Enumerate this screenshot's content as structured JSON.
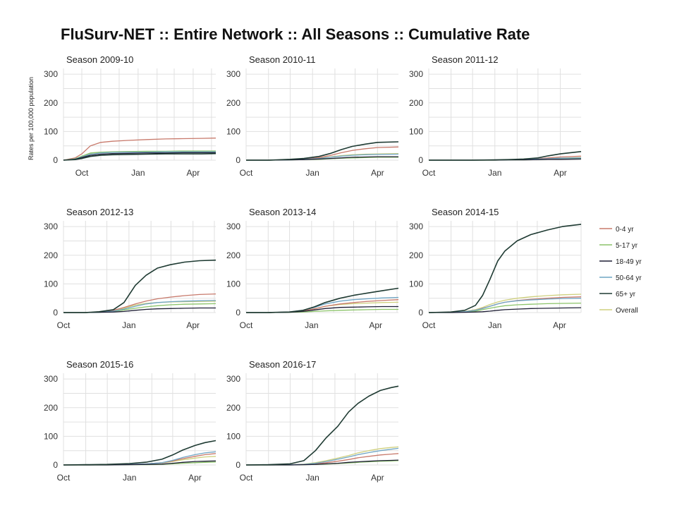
{
  "chart_data": {
    "type": "line",
    "title": "FluSurv-NET :: Entire Network :: All Seasons :: Cumulative Rate",
    "ylabel": "Rates per 100,000 population",
    "ylim": [
      0,
      320
    ],
    "yticks": [
      "0",
      "100",
      "200",
      "300"
    ],
    "grid": true,
    "legend_position": "right",
    "legend": [
      {
        "name": "0-4 yr",
        "color": "#c87a6c"
      },
      {
        "name": "5-17 yr",
        "color": "#8cc46a"
      },
      {
        "name": "18-49 yr",
        "color": "#1f1f35"
      },
      {
        "name": "50-64 yr",
        "color": "#6fa5c4"
      },
      {
        "name": "65+ yr",
        "color": "#1e3a32"
      },
      {
        "name": "Overall",
        "color": "#cfd07e"
      }
    ],
    "x_ticks": [
      "Oct",
      "Jan",
      "Apr"
    ],
    "panels": [
      {
        "title": "Season 2009-10",
        "x_start": "2009-09-01",
        "x_end": "2010-05-08",
        "x_tick_dates": [
          "2009-10-01",
          "2010-01-01",
          "2010-04-01"
        ],
        "dates": [
          "2009-09-01",
          "2009-09-20",
          "2009-10-01",
          "2009-10-15",
          "2009-11-01",
          "2009-11-20",
          "2009-12-15",
          "2010-01-15",
          "2010-02-15",
          "2010-03-15",
          "2010-04-15",
          "2010-05-08"
        ],
        "series": [
          {
            "name": "0-4 yr",
            "values": [
              0,
              8,
              22,
              50,
              62,
              66,
              69,
              72,
              74,
              75,
              76,
              77
            ]
          },
          {
            "name": "5-17 yr",
            "values": [
              0,
              5,
              14,
              25,
              28,
              29,
              30,
              31,
              31,
              32,
              32,
              32
            ]
          },
          {
            "name": "18-49 yr",
            "values": [
              0,
              3,
              9,
              17,
              21,
              23,
              24,
              25,
              25,
              26,
              26,
              26
            ]
          },
          {
            "name": "50-64 yr",
            "values": [
              0,
              4,
              11,
              21,
              25,
              27,
              28,
              28,
              29,
              29,
              29,
              29
            ]
          },
          {
            "name": "65+ yr",
            "values": [
              0,
              2,
              6,
              13,
              17,
              19,
              20,
              21,
              22,
              22,
              22,
              23
            ]
          },
          {
            "name": "Overall",
            "values": [
              0,
              4,
              12,
              22,
              26,
              28,
              29,
              30,
              30,
              31,
              31,
              31
            ]
          }
        ]
      },
      {
        "title": "Season 2010-11",
        "x_start": "2010-10-01",
        "x_end": "2011-04-30",
        "x_tick_dates": [
          "2010-10-01",
          "2011-01-01",
          "2011-04-01"
        ],
        "dates": [
          "2010-10-01",
          "2010-11-01",
          "2010-12-01",
          "2010-12-20",
          "2011-01-10",
          "2011-01-25",
          "2011-02-10",
          "2011-02-25",
          "2011-03-15",
          "2011-04-01",
          "2011-04-30"
        ],
        "series": [
          {
            "name": "0-4 yr",
            "values": [
              0,
              0,
              2,
              4,
              9,
              16,
              26,
              34,
              40,
              44,
              46
            ]
          },
          {
            "name": "5-17 yr",
            "values": [
              0,
              0,
              1,
              2,
              3,
              5,
              7,
              8,
              9,
              10,
              10
            ]
          },
          {
            "name": "18-49 yr",
            "values": [
              0,
              0,
              1,
              2,
              4,
              6,
              8,
              10,
              11,
              12,
              12
            ]
          },
          {
            "name": "50-64 yr",
            "values": [
              0,
              0,
              1,
              3,
              6,
              10,
              14,
              17,
              19,
              20,
              21
            ]
          },
          {
            "name": "65+ yr",
            "values": [
              0,
              0,
              3,
              6,
              13,
              23,
              37,
              48,
              56,
              62,
              64
            ]
          },
          {
            "name": "Overall",
            "values": [
              0,
              0,
              1,
              3,
              7,
              11,
              16,
              19,
              21,
              22,
              23
            ]
          }
        ]
      },
      {
        "title": "Season 2011-12",
        "x_start": "2011-10-01",
        "x_end": "2012-04-30",
        "x_tick_dates": [
          "2011-10-01",
          "2012-01-01",
          "2012-04-01"
        ],
        "dates": [
          "2011-10-01",
          "2011-11-01",
          "2011-12-01",
          "2012-01-01",
          "2012-01-20",
          "2012-02-10",
          "2012-03-01",
          "2012-03-15",
          "2012-04-01",
          "2012-04-30"
        ],
        "series": [
          {
            "name": "0-4 yr",
            "values": [
              0,
              0,
              0,
              1,
              1,
              2,
              5,
              8,
              11,
              14
            ]
          },
          {
            "name": "5-17 yr",
            "values": [
              0,
              0,
              0,
              0,
              1,
              1,
              2,
              3,
              4,
              5
            ]
          },
          {
            "name": "18-49 yr",
            "values": [
              0,
              0,
              0,
              0,
              1,
              1,
              2,
              3,
              3,
              4
            ]
          },
          {
            "name": "50-64 yr",
            "values": [
              0,
              0,
              0,
              1,
              1,
              2,
              4,
              5,
              7,
              8
            ]
          },
          {
            "name": "65+ yr",
            "values": [
              0,
              0,
              0,
              1,
              2,
              4,
              8,
              15,
              22,
              30
            ]
          },
          {
            "name": "Overall",
            "values": [
              0,
              0,
              0,
              1,
              1,
              2,
              4,
              6,
              7,
              9
            ]
          }
        ]
      },
      {
        "title": "Season 2012-13",
        "x_start": "2012-10-01",
        "x_end": "2013-05-03",
        "x_tick_dates": [
          "2012-10-01",
          "2013-01-01",
          "2013-04-01"
        ],
        "dates": [
          "2012-10-01",
          "2012-11-01",
          "2012-11-20",
          "2012-12-10",
          "2012-12-25",
          "2013-01-10",
          "2013-01-25",
          "2013-02-10",
          "2013-02-28",
          "2013-03-20",
          "2013-04-10",
          "2013-05-03"
        ],
        "series": [
          {
            "name": "0-4 yr",
            "values": [
              0,
              0,
              2,
              8,
              18,
              30,
              40,
              48,
              54,
              59,
              63,
              65
            ]
          },
          {
            "name": "5-17 yr",
            "values": [
              0,
              0,
              1,
              4,
              9,
              15,
              20,
              24,
              27,
              29,
              30,
              31
            ]
          },
          {
            "name": "18-49 yr",
            "values": [
              0,
              0,
              1,
              2,
              4,
              8,
              11,
              13,
              14,
              15,
              16,
              16
            ]
          },
          {
            "name": "50-64 yr",
            "values": [
              0,
              0,
              1,
              5,
              12,
              22,
              30,
              35,
              38,
              40,
              41,
              42
            ]
          },
          {
            "name": "65+ yr",
            "values": [
              0,
              0,
              3,
              10,
              35,
              95,
              130,
              155,
              167,
              176,
              181,
              183
            ]
          },
          {
            "name": "Overall",
            "values": [
              0,
              0,
              2,
              7,
              15,
              26,
              32,
              35,
              37,
              38,
              39,
              40
            ]
          }
        ]
      },
      {
        "title": "Season 2013-14",
        "x_start": "2013-10-01",
        "x_end": "2014-05-03",
        "x_tick_dates": [
          "2013-10-01",
          "2014-01-01",
          "2014-04-01"
        ],
        "dates": [
          "2013-10-01",
          "2013-11-01",
          "2013-12-01",
          "2013-12-20",
          "2014-01-05",
          "2014-01-20",
          "2014-02-10",
          "2014-03-01",
          "2014-03-20",
          "2014-04-10",
          "2014-05-03"
        ],
        "series": [
          {
            "name": "0-4 yr",
            "values": [
              0,
              0,
              2,
              6,
              13,
              22,
              30,
              35,
              39,
              42,
              45
            ]
          },
          {
            "name": "5-17 yr",
            "values": [
              0,
              0,
              1,
              2,
              4,
              6,
              8,
              9,
              10,
              11,
              11
            ]
          },
          {
            "name": "18-49 yr",
            "values": [
              0,
              0,
              1,
              4,
              9,
              14,
              18,
              19,
              20,
              21,
              21
            ]
          },
          {
            "name": "50-64 yr",
            "values": [
              0,
              0,
              2,
              8,
              18,
              30,
              40,
              45,
              48,
              51,
              53
            ]
          },
          {
            "name": "65+ yr",
            "values": [
              0,
              0,
              2,
              8,
              20,
              35,
              50,
              60,
              68,
              76,
              85
            ]
          },
          {
            "name": "Overall",
            "values": [
              0,
              0,
              1,
              6,
              13,
              22,
              28,
              31,
              33,
              35,
              36
            ]
          }
        ]
      },
      {
        "title": "Season 2014-15",
        "x_start": "2014-10-01",
        "x_end": "2015-05-01",
        "x_tick_dates": [
          "2014-10-01",
          "2015-01-01",
          "2015-04-01"
        ],
        "dates": [
          "2014-10-01",
          "2014-11-01",
          "2014-11-20",
          "2014-12-05",
          "2014-12-15",
          "2014-12-25",
          "2015-01-05",
          "2015-01-15",
          "2015-02-01",
          "2015-02-20",
          "2015-03-15",
          "2015-04-05",
          "2015-05-01"
        ],
        "series": [
          {
            "name": "0-4 yr",
            "values": [
              0,
              1,
              3,
              8,
              15,
              22,
              30,
              36,
              42,
              46,
              50,
              53,
              55
            ]
          },
          {
            "name": "5-17 yr",
            "values": [
              0,
              1,
              2,
              5,
              10,
              15,
              20,
              24,
              27,
              29,
              31,
              32,
              33
            ]
          },
          {
            "name": "18-49 yr",
            "values": [
              0,
              0,
              1,
              2,
              3,
              5,
              8,
              10,
              12,
              14,
              15,
              16,
              17
            ]
          },
          {
            "name": "50-64 yr",
            "values": [
              0,
              1,
              3,
              8,
              14,
              22,
              30,
              36,
              41,
              44,
              47,
              49,
              50
            ]
          },
          {
            "name": "65+ yr",
            "values": [
              0,
              2,
              8,
              25,
              60,
              115,
              180,
              215,
              250,
              272,
              288,
              300,
              308
            ]
          },
          {
            "name": "Overall",
            "values": [
              0,
              1,
              4,
              10,
              18,
              28,
              37,
              43,
              50,
              55,
              59,
              62,
              64
            ]
          }
        ]
      },
      {
        "title": "Season 2015-16",
        "x_start": "2015-10-01",
        "x_end": "2016-04-30",
        "x_tick_dates": [
          "2015-10-01",
          "2016-01-01",
          "2016-04-01"
        ],
        "dates": [
          "2015-10-01",
          "2015-11-01",
          "2015-12-01",
          "2016-01-01",
          "2016-01-25",
          "2016-02-15",
          "2016-03-01",
          "2016-03-15",
          "2016-04-01",
          "2016-04-15",
          "2016-04-30"
        ],
        "series": [
          {
            "name": "0-4 yr",
            "values": [
              0,
              0,
              1,
              2,
              4,
              8,
              14,
              22,
              30,
              36,
              40
            ]
          },
          {
            "name": "5-17 yr",
            "values": [
              0,
              0,
              0,
              1,
              1,
              2,
              4,
              6,
              8,
              9,
              10
            ]
          },
          {
            "name": "18-49 yr",
            "values": [
              0,
              0,
              0,
              1,
              2,
              3,
              6,
              9,
              12,
              13,
              14
            ]
          },
          {
            "name": "50-64 yr",
            "values": [
              0,
              0,
              1,
              2,
              4,
              8,
              16,
              26,
              36,
              42,
              46
            ]
          },
          {
            "name": "65+ yr",
            "values": [
              0,
              1,
              2,
              5,
              10,
              20,
              35,
              52,
              68,
              78,
              85
            ]
          },
          {
            "name": "Overall",
            "values": [
              0,
              0,
              1,
              2,
              4,
              7,
              12,
              18,
              24,
              28,
              30
            ]
          }
        ]
      },
      {
        "title": "Season 2016-17",
        "x_start": "2016-10-01",
        "x_end": "2017-04-30",
        "x_tick_dates": [
          "2016-10-01",
          "2017-01-01",
          "2017-04-01"
        ],
        "dates": [
          "2016-10-01",
          "2016-11-01",
          "2016-12-01",
          "2016-12-20",
          "2017-01-05",
          "2017-01-20",
          "2017-02-05",
          "2017-02-20",
          "2017-03-05",
          "2017-03-20",
          "2017-04-05",
          "2017-04-20",
          "2017-04-30"
        ],
        "series": [
          {
            "name": "0-4 yr",
            "values": [
              0,
              0,
              1,
              2,
              4,
              8,
              13,
              19,
              25,
              30,
              35,
              38,
              40
            ]
          },
          {
            "name": "5-17 yr",
            "values": [
              0,
              0,
              0,
              1,
              2,
              3,
              5,
              7,
              9,
              11,
              13,
              14,
              15
            ]
          },
          {
            "name": "18-49 yr",
            "values": [
              0,
              0,
              0,
              1,
              2,
              4,
              6,
              9,
              11,
              13,
              15,
              16,
              17
            ]
          },
          {
            "name": "50-64 yr",
            "values": [
              0,
              0,
              1,
              2,
              6,
              12,
              20,
              28,
              36,
              43,
              50,
              55,
              58
            ]
          },
          {
            "name": "65+ yr",
            "values": [
              0,
              1,
              4,
              15,
              50,
              95,
              135,
              185,
              215,
              240,
              260,
              270,
              275
            ]
          },
          {
            "name": "Overall",
            "values": [
              0,
              0,
              1,
              3,
              8,
              15,
              24,
              33,
              42,
              50,
              57,
              61,
              63
            ]
          }
        ]
      }
    ]
  }
}
